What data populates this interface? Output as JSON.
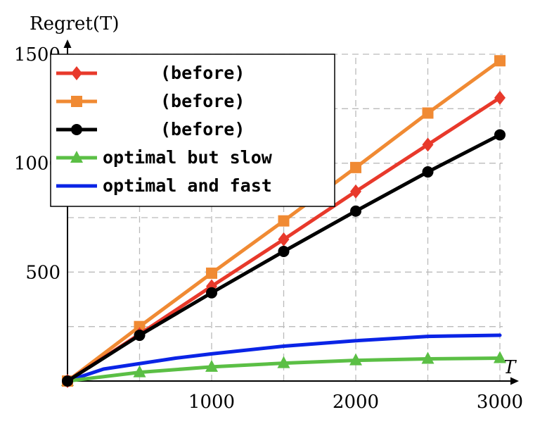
{
  "chart_data": {
    "type": "line",
    "ylabel": "Regret(T)",
    "xlabel": "T",
    "xlim": [
      0,
      3000
    ],
    "ylim": [
      0,
      1500
    ],
    "x_ticks": [
      1000,
      2000,
      3000
    ],
    "y_ticks": [
      500,
      1000,
      1500
    ],
    "x_ticks_display": [
      "1000",
      "2000",
      "3000"
    ],
    "y_ticks_display": [
      "500",
      "1000",
      "1500"
    ],
    "grid": true,
    "legend_position": "top-left",
    "series": [
      {
        "name": "(before)",
        "color": "#e8392b",
        "marker": "diamond",
        "x": [
          0,
          500,
          1000,
          1500,
          2000,
          2500,
          3000
        ],
        "y": [
          0,
          215,
          435,
          650,
          870,
          1085,
          1300
        ]
      },
      {
        "name": "(before)",
        "color": "#f08a33",
        "marker": "square",
        "x": [
          0,
          500,
          1000,
          1500,
          2000,
          2500,
          3000
        ],
        "y": [
          0,
          250,
          495,
          735,
          980,
          1230,
          1470
        ]
      },
      {
        "name": "(before)",
        "color": "#000000",
        "marker": "circle",
        "x": [
          0,
          500,
          1000,
          1500,
          2000,
          2500,
          3000
        ],
        "y": [
          0,
          210,
          405,
          595,
          780,
          960,
          1130
        ]
      },
      {
        "name": "optimal but slow",
        "color": "#5bbf45",
        "marker": "triangle",
        "x": [
          0,
          500,
          1000,
          1500,
          2000,
          2500,
          3000
        ],
        "y": [
          0,
          40,
          65,
          82,
          95,
          102,
          105
        ]
      },
      {
        "name": "optimal and fast",
        "color": "#0a24e6",
        "marker": "none",
        "x": [
          0,
          250,
          500,
          750,
          1000,
          1500,
          2000,
          2500,
          3000
        ],
        "y": [
          0,
          55,
          80,
          105,
          125,
          160,
          185,
          205,
          210
        ]
      }
    ]
  }
}
